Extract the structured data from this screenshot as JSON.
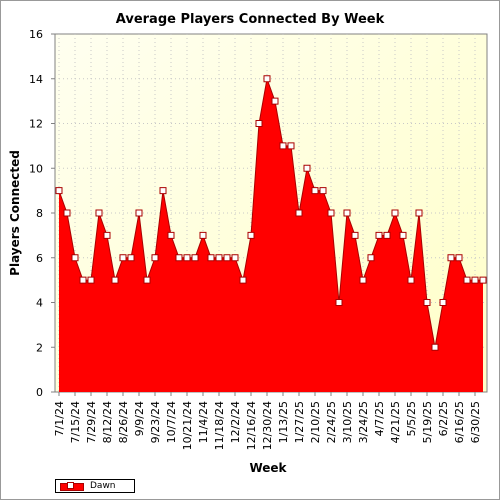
{
  "chart_data": {
    "type": "area",
    "title": "Average Players Connected By Week",
    "xlabel": "Week",
    "ylabel": "Players Connected",
    "ylim": [
      0,
      16
    ],
    "yticks": [
      0,
      2,
      4,
      6,
      8,
      10,
      12,
      14,
      16
    ],
    "grid": true,
    "legend_position": "bottom-left",
    "categories": [
      "7/1/24",
      "7/8/24",
      "7/15/24",
      "7/22/24",
      "7/29/24",
      "8/5/24",
      "8/12/24",
      "8/19/24",
      "8/26/24",
      "9/2/24",
      "9/9/24",
      "9/16/24",
      "9/23/24",
      "9/30/24",
      "10/7/24",
      "10/14/24",
      "10/21/24",
      "10/28/24",
      "11/4/24",
      "11/11/24",
      "11/18/24",
      "11/25/24",
      "12/2/24",
      "12/9/24",
      "12/16/24",
      "12/23/24",
      "12/30/24",
      "1/6/25",
      "1/13/25",
      "1/20/25",
      "1/27/25",
      "2/3/25",
      "2/10/25",
      "2/17/25",
      "2/24/25",
      "3/3/25",
      "3/10/25",
      "3/17/25",
      "3/24/25",
      "3/31/25",
      "4/7/25",
      "4/14/25",
      "4/21/25",
      "4/28/25",
      "5/5/25",
      "5/12/25",
      "5/19/25",
      "5/26/25",
      "6/2/25",
      "6/9/25",
      "6/16/25",
      "6/23/25",
      "6/30/25",
      "7/7/25"
    ],
    "tick_labels": [
      "7/1/24",
      "7/15/24",
      "7/29/24",
      "8/12/24",
      "8/26/24",
      "9/9/24",
      "9/23/24",
      "10/7/24",
      "10/21/24",
      "11/4/24",
      "11/18/24",
      "12/2/24",
      "12/16/24",
      "12/30/24",
      "1/13/25",
      "1/27/25",
      "2/10/25",
      "2/24/25",
      "3/10/25",
      "3/24/25",
      "4/7/25",
      "4/21/25",
      "5/5/25",
      "5/19/25",
      "6/2/25",
      "6/16/25",
      "6/30/25"
    ],
    "series": [
      {
        "name": "Dawn",
        "color": "#ff0000",
        "edge_color": "#aa0000",
        "values": [
          9,
          8,
          6,
          5,
          5,
          8,
          7,
          5,
          6,
          6,
          8,
          5,
          6,
          9,
          7,
          6,
          6,
          6,
          7,
          6,
          6,
          6,
          6,
          5,
          7,
          12,
          14,
          13,
          11,
          11,
          8,
          10,
          9,
          9,
          8,
          4,
          8,
          7,
          5,
          6,
          7,
          7,
          8,
          7,
          5,
          8,
          4,
          2,
          4,
          6,
          6,
          5,
          5,
          5
        ]
      }
    ]
  }
}
